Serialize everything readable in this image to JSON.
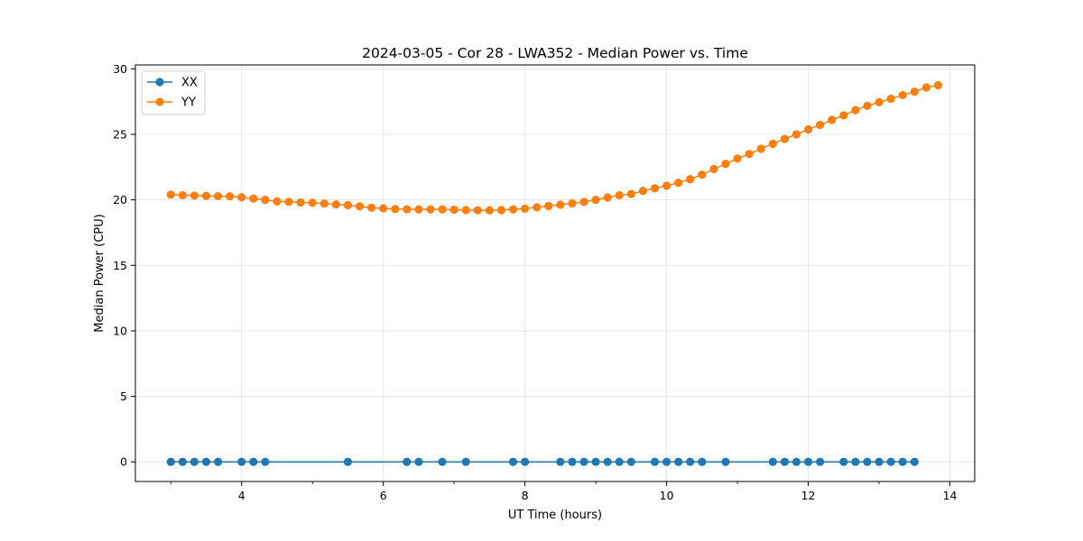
{
  "chart_data": {
    "type": "line",
    "title": "2024-03-05 - Cor 28 - LWA352 - Median Power vs. Time",
    "xlabel": "UT Time (hours)",
    "ylabel": "Median Power (CPU)",
    "xlim": [
      2.5,
      14.35
    ],
    "ylim": [
      -1.5,
      30.3
    ],
    "xticks": [
      4,
      6,
      8,
      10,
      12,
      14
    ],
    "xticks_minor": [
      3,
      5,
      7,
      9,
      11,
      13
    ],
    "yticks": [
      0,
      5,
      10,
      15,
      20,
      25,
      30
    ],
    "grid": true,
    "legend_position": "top-left",
    "series": [
      {
        "name": "XX",
        "color": "#1f77b4",
        "x": [
          3.0,
          3.167,
          3.333,
          3.5,
          3.667,
          4.0,
          4.167,
          4.333,
          5.5,
          6.333,
          6.5,
          6.833,
          7.167,
          7.833,
          8.0,
          8.5,
          8.667,
          8.833,
          9.0,
          9.167,
          9.333,
          9.5,
          9.833,
          10.0,
          10.167,
          10.333,
          10.5,
          10.833,
          11.5,
          11.667,
          11.833,
          12.0,
          12.167,
          12.5,
          12.667,
          12.833,
          13.0,
          13.167,
          13.333,
          13.5
        ],
        "y": [
          0,
          0,
          0,
          0,
          0,
          0,
          0,
          0,
          0,
          0,
          0,
          0,
          0,
          0,
          0,
          0,
          0,
          0,
          0,
          0,
          0,
          0,
          0,
          0,
          0,
          0,
          0,
          0,
          0,
          0,
          0,
          0,
          0,
          0,
          0,
          0,
          0,
          0,
          0,
          0
        ]
      },
      {
        "name": "YY",
        "color": "#ff7f0e",
        "x": [
          3.0,
          3.167,
          3.333,
          3.5,
          3.667,
          3.833,
          4.0,
          4.167,
          4.333,
          4.5,
          4.667,
          4.833,
          5.0,
          5.167,
          5.333,
          5.5,
          5.667,
          5.833,
          6.0,
          6.167,
          6.333,
          6.5,
          6.667,
          6.833,
          7.0,
          7.167,
          7.333,
          7.5,
          7.667,
          7.833,
          8.0,
          8.167,
          8.333,
          8.5,
          8.667,
          8.833,
          9.0,
          9.167,
          9.333,
          9.5,
          9.667,
          9.833,
          10.0,
          10.167,
          10.333,
          10.5,
          10.667,
          10.833,
          11.0,
          11.167,
          11.333,
          11.5,
          11.667,
          11.833,
          12.0,
          12.167,
          12.333,
          12.5,
          12.667,
          12.833,
          13.0,
          13.167,
          13.333,
          13.5,
          13.667,
          13.833
        ],
        "y": [
          20.4,
          20.35,
          20.33,
          20.3,
          20.28,
          20.27,
          20.2,
          20.1,
          20.0,
          19.88,
          19.85,
          19.8,
          19.78,
          19.72,
          19.65,
          19.6,
          19.5,
          19.4,
          19.35,
          19.3,
          19.28,
          19.27,
          19.27,
          19.27,
          19.25,
          19.22,
          19.2,
          19.2,
          19.22,
          19.28,
          19.33,
          19.43,
          19.53,
          19.63,
          19.73,
          19.85,
          20.0,
          20.18,
          20.35,
          20.45,
          20.68,
          20.88,
          21.08,
          21.3,
          21.58,
          21.92,
          22.35,
          22.75,
          23.15,
          23.5,
          23.9,
          24.28,
          24.65,
          25.0,
          25.38,
          25.72,
          26.1,
          26.45,
          26.85,
          27.18,
          27.45,
          27.72,
          28.0,
          28.25,
          28.58,
          28.75
        ]
      }
    ]
  }
}
